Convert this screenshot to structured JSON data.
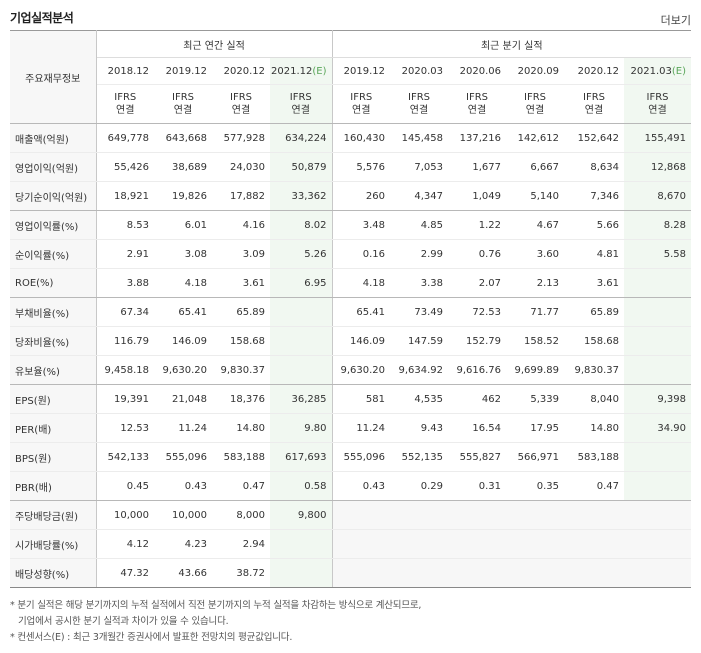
{
  "header": {
    "title": "기업실적분석",
    "more_label": "더보기"
  },
  "table": {
    "corner_label": "주요재무정보",
    "annual_group": "최근 연간 실적",
    "quarterly_group": "최근 분기 실적",
    "estimate_tag": "(E)",
    "ifrs_line1": "IFRS",
    "ifrs_line2": "연결",
    "annual_periods": [
      {
        "label": "2018.12",
        "estimate": ""
      },
      {
        "label": "2019.12",
        "estimate": ""
      },
      {
        "label": "2020.12",
        "estimate": ""
      },
      {
        "label": "2021.12",
        "estimate": "(E)"
      }
    ],
    "quarter_periods": [
      {
        "label": "2019.12",
        "estimate": ""
      },
      {
        "label": "2020.03",
        "estimate": ""
      },
      {
        "label": "2020.06",
        "estimate": ""
      },
      {
        "label": "2020.09",
        "estimate": ""
      },
      {
        "label": "2020.12",
        "estimate": ""
      },
      {
        "label": "2021.03",
        "estimate": "(E)"
      }
    ],
    "rows": [
      {
        "label": "매출액(억원)",
        "annual": [
          "649,778",
          "643,668",
          "577,928",
          "634,224"
        ],
        "quarter": [
          "160,430",
          "145,458",
          "137,216",
          "142,612",
          "152,642",
          "155,491"
        ]
      },
      {
        "label": "영업이익(억원)",
        "annual": [
          "55,426",
          "38,689",
          "24,030",
          "50,879"
        ],
        "quarter": [
          "5,576",
          "7,053",
          "1,677",
          "6,667",
          "8,634",
          "12,868"
        ]
      },
      {
        "label": "당기순이익(억원)",
        "annual": [
          "18,921",
          "19,826",
          "17,882",
          "33,362"
        ],
        "quarter": [
          "260",
          "4,347",
          "1,049",
          "5,140",
          "7,346",
          "8,670"
        ]
      },
      {
        "label": "영업이익률(%)",
        "annual": [
          "8.53",
          "6.01",
          "4.16",
          "8.02"
        ],
        "quarter": [
          "3.48",
          "4.85",
          "1.22",
          "4.67",
          "5.66",
          "8.28"
        ]
      },
      {
        "label": "순이익률(%)",
        "annual": [
          "2.91",
          "3.08",
          "3.09",
          "5.26"
        ],
        "quarter": [
          "0.16",
          "2.99",
          "0.76",
          "3.60",
          "4.81",
          "5.58"
        ]
      },
      {
        "label": "ROE(%)",
        "annual": [
          "3.88",
          "4.18",
          "3.61",
          "6.95"
        ],
        "quarter": [
          "4.18",
          "3.38",
          "2.07",
          "2.13",
          "3.61",
          ""
        ]
      },
      {
        "label": "부채비율(%)",
        "annual": [
          "67.34",
          "65.41",
          "65.89",
          ""
        ],
        "quarter": [
          "65.41",
          "73.49",
          "72.53",
          "71.77",
          "65.89",
          ""
        ]
      },
      {
        "label": "당좌비율(%)",
        "annual": [
          "116.79",
          "146.09",
          "158.68",
          ""
        ],
        "quarter": [
          "146.09",
          "147.59",
          "152.79",
          "158.52",
          "158.68",
          ""
        ]
      },
      {
        "label": "유보율(%)",
        "annual": [
          "9,458.18",
          "9,630.20",
          "9,830.37",
          ""
        ],
        "quarter": [
          "9,630.20",
          "9,634.92",
          "9,616.76",
          "9,699.89",
          "9,830.37",
          ""
        ]
      },
      {
        "label": "EPS(원)",
        "annual": [
          "19,391",
          "21,048",
          "18,376",
          "36,285"
        ],
        "quarter": [
          "581",
          "4,535",
          "462",
          "5,339",
          "8,040",
          "9,398"
        ]
      },
      {
        "label": "PER(배)",
        "annual": [
          "12.53",
          "11.24",
          "14.80",
          "9.80"
        ],
        "quarter": [
          "11.24",
          "9.43",
          "16.54",
          "17.95",
          "14.80",
          "34.90"
        ]
      },
      {
        "label": "BPS(원)",
        "annual": [
          "542,133",
          "555,096",
          "583,188",
          "617,693"
        ],
        "quarter": [
          "555,096",
          "552,135",
          "555,827",
          "566,971",
          "583,188",
          ""
        ]
      },
      {
        "label": "PBR(배)",
        "annual": [
          "0.45",
          "0.43",
          "0.47",
          "0.58"
        ],
        "quarter": [
          "0.43",
          "0.29",
          "0.31",
          "0.35",
          "0.47",
          ""
        ]
      },
      {
        "label": "주당배당금(원)",
        "annual": [
          "10,000",
          "10,000",
          "8,000",
          "9,800"
        ],
        "quarter": [
          null,
          null,
          null,
          null,
          null,
          null
        ]
      },
      {
        "label": "시가배당률(%)",
        "annual": [
          "4.12",
          "4.23",
          "2.94",
          ""
        ],
        "quarter": [
          null,
          null,
          null,
          null,
          null,
          null
        ]
      },
      {
        "label": "배당성향(%)",
        "annual": [
          "47.32",
          "43.66",
          "38.72",
          ""
        ],
        "quarter": [
          null,
          null,
          null,
          null,
          null,
          null
        ]
      }
    ]
  },
  "notes": {
    "line1": "* 분기 실적은 해당 분기까지의 누적 실적에서 직전 분기까지의 누적 실적을 차감하는 방식으로 계산되므로,",
    "line2": "기업에서 공시한 분기 실적과 차이가 있을 수 있습니다.",
    "line3": "* 컨센서스(E) : 최근 3개월간 증권사에서 발표한 전망치의 평균값입니다."
  }
}
